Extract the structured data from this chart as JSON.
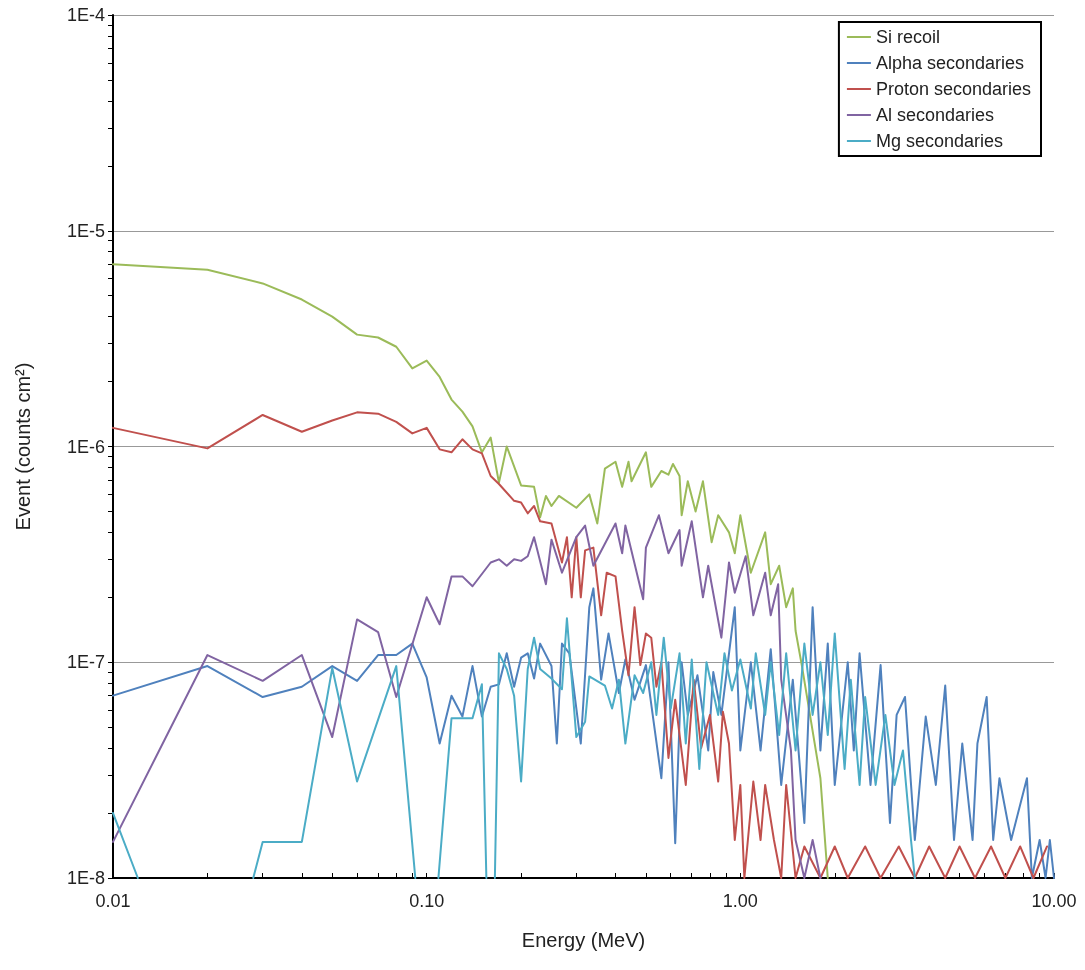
{
  "chart_data": {
    "type": "line",
    "xlabel": "Energy (MeV)",
    "ylabel": "Event (counts cm²)",
    "log": "xy",
    "marker": "none",
    "line_style": "solid",
    "grid": "y",
    "legend": "top right",
    "xlim": [
      0.01,
      10
    ],
    "xticks": [
      {
        "value": 0.01,
        "label": "0.01"
      },
      {
        "value": 0.1,
        "label": "0.10"
      },
      {
        "value": 1,
        "label": "1.00"
      },
      {
        "value": 10,
        "label": "10.00"
      }
    ],
    "ylim": [
      1e-08,
      0.0001
    ],
    "yticks": [
      {
        "value": 1e-08,
        "label": "1E-8"
      },
      {
        "value": 1e-07,
        "label": "1E-7"
      },
      {
        "value": 1e-06,
        "label": "1E-6"
      },
      {
        "value": 1e-05,
        "label": "1E-5"
      },
      {
        "value": 0.0001,
        "label": "1E-4"
      }
    ],
    "series": [
      {
        "name": "Si recoil",
        "color": "#9bbb59",
        "x": [
          0.01,
          0.02,
          0.03,
          0.04,
          0.05,
          0.06,
          0.07,
          0.08,
          0.09,
          0.1,
          0.11,
          0.12,
          0.13,
          0.14,
          0.15,
          0.16,
          0.17,
          0.18,
          0.2,
          0.22,
          0.23,
          0.24,
          0.25,
          0.264,
          0.3,
          0.33,
          0.35,
          0.37,
          0.4,
          0.42,
          0.44,
          0.45,
          0.5,
          0.52,
          0.56,
          0.59,
          0.61,
          0.64,
          0.65,
          0.68,
          0.72,
          0.76,
          0.81,
          0.85,
          0.92,
          0.96,
          1.0,
          1.08,
          1.2,
          1.25,
          1.33,
          1.4,
          1.47,
          1.5,
          1.57,
          1.8,
          1.9
        ],
        "values": [
          7e-06,
          6.6e-06,
          5.7e-06,
          4.8e-06,
          4e-06,
          3.3e-06,
          3.2e-06,
          2.9e-06,
          2.3e-06,
          2.5e-06,
          2.1e-06,
          1.65e-06,
          1.45e-06,
          1.24e-06,
          9.4e-07,
          1.1e-06,
          6.8e-07,
          1e-06,
          6.6e-07,
          6.5e-07,
          4.7e-07,
          5.9e-07,
          5.3e-07,
          5.9e-07,
          5.2e-07,
          6e-07,
          4.4e-07,
          7.9e-07,
          8.5e-07,
          6.5e-07,
          8.5e-07,
          6.9e-07,
          9.4e-07,
          6.5e-07,
          7.7e-07,
          7.4e-07,
          8.3e-07,
          7.3e-07,
          4.8e-07,
          6.9e-07,
          5e-07,
          6.9e-07,
          3.6e-07,
          4.8e-07,
          4e-07,
          3.2e-07,
          4.8e-07,
          2.6e-07,
          4e-07,
          2.3e-07,
          2.8e-07,
          1.8e-07,
          2.2e-07,
          1.4e-07,
          9.7e-08,
          2.9e-08,
          1e-08
        ]
      },
      {
        "name": "Alpha secondaries",
        "color": "#4f81bd",
        "x": [
          0.01,
          0.02,
          0.03,
          0.04,
          0.05,
          0.06,
          0.07,
          0.08,
          0.09,
          0.1,
          0.11,
          0.12,
          0.13,
          0.14,
          0.15,
          0.16,
          0.17,
          0.18,
          0.19,
          0.2,
          0.21,
          0.22,
          0.23,
          0.25,
          0.26,
          0.27,
          0.285,
          0.31,
          0.33,
          0.34,
          0.36,
          0.38,
          0.41,
          0.43,
          0.46,
          0.5,
          0.56,
          0.59,
          0.62,
          0.65,
          0.68,
          0.73,
          0.79,
          0.82,
          0.87,
          0.96,
          1.0,
          1.08,
          1.16,
          1.25,
          1.35,
          1.47,
          1.6,
          1.7,
          1.8,
          1.9,
          2.0,
          2.2,
          2.3,
          2.4,
          2.6,
          2.8,
          3.0,
          3.15,
          3.35,
          3.6,
          3.9,
          4.2,
          4.5,
          4.8,
          5.1,
          5.5,
          5.7,
          6.1,
          6.4,
          6.7,
          7.3,
          8.2,
          8.5,
          9.0,
          9.4,
          9.7,
          10
        ],
        "values": [
          7e-08,
          9.6e-08,
          6.9e-08,
          7.7e-08,
          9.6e-08,
          8.2e-08,
          1.08e-07,
          1.08e-07,
          1.22e-07,
          8.5e-08,
          4.2e-08,
          7e-08,
          5.6e-08,
          9.6e-08,
          5.6e-08,
          7.7e-08,
          7.9e-08,
          1.1e-07,
          7.7e-08,
          1.05e-07,
          1.1e-07,
          8.4e-08,
          1.22e-07,
          9.6e-08,
          4.2e-08,
          1.22e-07,
          1.1e-07,
          4.2e-08,
          1.8e-07,
          2.2e-07,
          8.3e-08,
          1.36e-07,
          7.2e-08,
          1.03e-07,
          6.7e-08,
          9.7e-08,
          2.9e-08,
          1e-07,
          1.45e-08,
          1e-07,
          5.7e-08,
          8.7e-08,
          3.9e-08,
          9e-08,
          5.7e-08,
          1.8e-07,
          3.9e-08,
          1e-07,
          3.9e-08,
          1.15e-07,
          2.7e-08,
          8.3e-08,
          1.8e-08,
          1.8e-07,
          3.9e-08,
          1.22e-07,
          2.7e-08,
          1e-07,
          3.9e-08,
          1.1e-07,
          2.7e-08,
          9.7e-08,
          1.8e-08,
          5.7e-08,
          6.9e-08,
          1.5e-08,
          5.6e-08,
          2.7e-08,
          7.8e-08,
          1.5e-08,
          4.2e-08,
          1.5e-08,
          4.2e-08,
          6.9e-08,
          1.5e-08,
          2.9e-08,
          1.5e-08,
          2.9e-08,
          1e-08,
          1.5e-08,
          1e-08,
          1.5e-08,
          1e-08
        ]
      },
      {
        "name": "Proton secondaries",
        "color": "#c0504d",
        "x": [
          0.01,
          0.02,
          0.03,
          0.04,
          0.05,
          0.06,
          0.07,
          0.08,
          0.09,
          0.1,
          0.11,
          0.12,
          0.13,
          0.14,
          0.15,
          0.16,
          0.17,
          0.19,
          0.2,
          0.21,
          0.22,
          0.23,
          0.25,
          0.27,
          0.28,
          0.29,
          0.3,
          0.31,
          0.32,
          0.34,
          0.36,
          0.375,
          0.4,
          0.42,
          0.44,
          0.46,
          0.48,
          0.5,
          0.52,
          0.54,
          0.56,
          0.59,
          0.62,
          0.67,
          0.71,
          0.75,
          0.8,
          0.85,
          0.88,
          0.92,
          0.96,
          1.0,
          1.03,
          1.1,
          1.16,
          1.2,
          1.28,
          1.35,
          1.4,
          1.5,
          1.6,
          1.8,
          2.0,
          2.2,
          2.5,
          2.8,
          3.2,
          3.6,
          4.0,
          4.5,
          5.0,
          5.6,
          6.3,
          7.0,
          7.8,
          8.6,
          9.5
        ],
        "values": [
          1.22e-06,
          9.8e-07,
          1.4e-06,
          1.17e-06,
          1.32e-06,
          1.44e-06,
          1.42e-06,
          1.3e-06,
          1.15e-06,
          1.22e-06,
          9.7e-07,
          9.4e-07,
          1.08e-06,
          9.7e-07,
          9.3e-07,
          7.3e-07,
          6.7e-07,
          5.6e-07,
          5.5e-07,
          4.9e-07,
          5.3e-07,
          4.5e-07,
          4.4e-07,
          2.9e-07,
          3.8e-07,
          2e-07,
          3.8e-07,
          2e-07,
          3.3e-07,
          3.4e-07,
          1.65e-07,
          2.6e-07,
          2.5e-07,
          1.4e-07,
          8.7e-08,
          1.8e-07,
          9.7e-08,
          1.36e-07,
          1.3e-07,
          7.7e-08,
          1e-07,
          3.6e-08,
          6.7e-08,
          2.7e-08,
          8.3e-08,
          4e-08,
          5.7e-08,
          2.8e-08,
          5.9e-08,
          4.2e-08,
          1.5e-08,
          2.7e-08,
          1e-08,
          2.8e-08,
          1.5e-08,
          2.7e-08,
          1.5e-08,
          1e-08,
          2.7e-08,
          1e-08,
          1.4e-08,
          1e-08,
          1.4e-08,
          1e-08,
          1.4e-08,
          1e-08,
          1.4e-08,
          1e-08,
          1.4e-08,
          1e-08,
          1.4e-08,
          1e-08,
          1.4e-08,
          1e-08,
          1.4e-08,
          1e-08,
          1.4e-08
        ]
      },
      {
        "name": "Al secondaries",
        "color": "#8064a2",
        "x": [
          0.01,
          0.02,
          0.03,
          0.04,
          0.05,
          0.06,
          0.07,
          0.08,
          0.1,
          0.11,
          0.12,
          0.13,
          0.14,
          0.16,
          0.17,
          0.18,
          0.19,
          0.2,
          0.21,
          0.22,
          0.24,
          0.25,
          0.27,
          0.3,
          0.32,
          0.34,
          0.4,
          0.42,
          0.43,
          0.49,
          0.5,
          0.55,
          0.59,
          0.64,
          0.65,
          0.7,
          0.76,
          0.79,
          0.87,
          0.92,
          0.96,
          1.04,
          1.1,
          1.2,
          1.25,
          1.32,
          1.35,
          1.45,
          1.5,
          1.6,
          1.7,
          1.8
        ],
        "values": [
          1.47e-08,
          1.08e-07,
          8.2e-08,
          1.08e-07,
          4.5e-08,
          1.58e-07,
          1.38e-07,
          6.9e-08,
          2e-07,
          1.5e-07,
          2.5e-07,
          2.5e-07,
          2.25e-07,
          2.9e-07,
          3e-07,
          2.8e-07,
          3e-07,
          2.95e-07,
          3.1e-07,
          3.8e-07,
          2.3e-07,
          3.7e-07,
          2.6e-07,
          3.8e-07,
          4.3e-07,
          2.8e-07,
          4.4e-07,
          3.2e-07,
          4.3e-07,
          1.96e-07,
          3.4e-07,
          4.8e-07,
          3.2e-07,
          4.1e-07,
          2.8e-07,
          4.5e-07,
          2e-07,
          2.8e-07,
          1.3e-07,
          2.9e-07,
          2.1e-07,
          3.1e-07,
          1.65e-07,
          2.6e-07,
          1.65e-07,
          2.3e-07,
          8.3e-08,
          3.9e-08,
          1.5e-08,
          1e-08,
          1.5e-08,
          1e-08
        ]
      },
      {
        "name": "Mg secondaries",
        "color": "#4bacc6",
        "x": [
          0.01,
          0.012,
          0.02,
          0.028,
          0.03,
          0.04,
          0.05,
          0.06,
          0.08,
          0.092,
          0.1,
          0.109,
          0.12,
          0.14,
          0.15,
          0.155,
          0.16,
          0.165,
          0.17,
          0.18,
          0.19,
          0.2,
          0.21,
          0.22,
          0.23,
          0.25,
          0.27,
          0.28,
          0.3,
          0.32,
          0.33,
          0.37,
          0.39,
          0.41,
          0.43,
          0.46,
          0.49,
          0.52,
          0.54,
          0.57,
          0.6,
          0.64,
          0.67,
          0.7,
          0.74,
          0.78,
          0.85,
          0.89,
          0.94,
          1.0,
          1.08,
          1.12,
          1.2,
          1.25,
          1.33,
          1.4,
          1.5,
          1.6,
          1.7,
          1.8,
          1.9,
          2.0,
          2.15,
          2.25,
          2.4,
          2.5,
          2.7,
          2.9,
          3.1,
          3.3,
          3.5,
          3.6
        ],
        "values": [
          2e-08,
          1e-08,
          null,
          1e-08,
          1.47e-08,
          1.47e-08,
          9.4e-08,
          2.8e-08,
          9.6e-08,
          1e-08,
          null,
          1e-08,
          5.5e-08,
          5.5e-08,
          7.9e-08,
          1e-08,
          null,
          1e-08,
          1.1e-07,
          9.3e-08,
          7e-08,
          2.8e-08,
          9.3e-08,
          1.3e-07,
          9.3e-08,
          8.4e-08,
          7.5e-08,
          1.6e-07,
          4.5e-08,
          5.3e-08,
          8.6e-08,
          7.8e-08,
          6.1e-08,
          8.3e-08,
          4.2e-08,
          8.7e-08,
          7.2e-08,
          1e-07,
          5.7e-08,
          1.3e-07,
          6.1e-08,
          1.1e-07,
          4.2e-08,
          1.03e-07,
          3.2e-08,
          1e-07,
          5.7e-08,
          1.1e-07,
          7.4e-08,
          1.03e-07,
          6.1e-08,
          1.1e-07,
          5.7e-08,
          1e-07,
          4.6e-08,
          1.1e-07,
          3.9e-08,
          1.22e-07,
          5.7e-08,
          1e-07,
          4.6e-08,
          1.36e-07,
          3.2e-08,
          8.3e-08,
          2.7e-08,
          6.9e-08,
          2.7e-08,
          5.7e-08,
          2.7e-08,
          3.9e-08,
          1.5e-08,
          1e-08
        ]
      }
    ]
  }
}
